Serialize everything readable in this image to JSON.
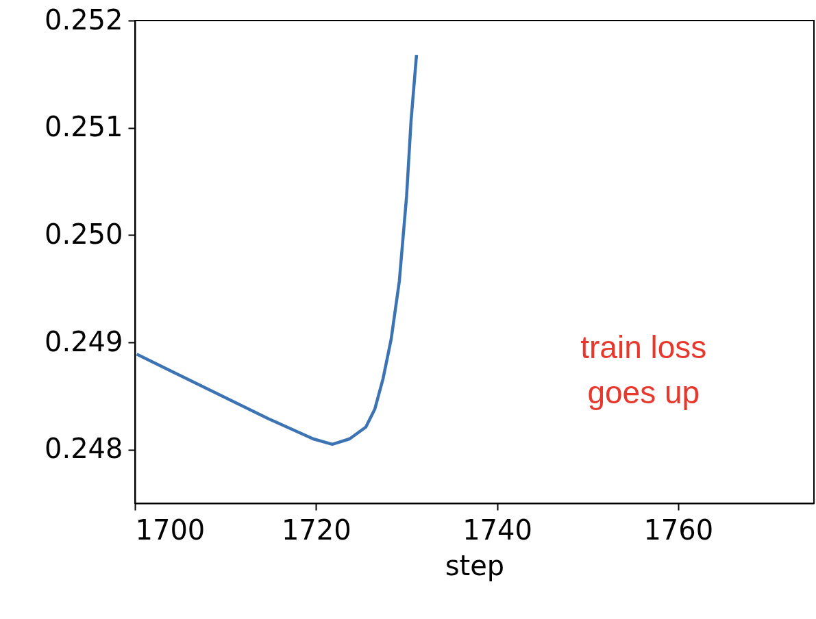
{
  "chart_data": {
    "type": "line",
    "xlabel": "step",
    "annotations": [
      "train loss goes up"
    ],
    "x": [
      1700.2,
      1714.7,
      1719.7,
      1721.8,
      1723.7,
      1725.5,
      1726.5,
      1727.4,
      1728.3,
      1729.2,
      1730.0,
      1730.5,
      1731.1
    ],
    "series": [
      {
        "color": "#3b73b3",
        "values": [
          0.24889,
          0.24829,
          0.2481,
          0.24805,
          0.2481,
          0.24821,
          0.24838,
          0.24866,
          0.24903,
          0.24957,
          0.25036,
          0.25107,
          0.25168
        ]
      }
    ],
    "xlim": [
      1700,
      1775
    ],
    "xticks": [
      1700,
      1720,
      1740,
      1760
    ],
    "ylim": [
      0.2475,
      0.252
    ],
    "yticks": [
      0.248,
      0.249,
      {
        "value": 0.25,
        "label": "0.250"
      },
      0.251,
      0.252
    ],
    "grid": false,
    "legend": false
  }
}
